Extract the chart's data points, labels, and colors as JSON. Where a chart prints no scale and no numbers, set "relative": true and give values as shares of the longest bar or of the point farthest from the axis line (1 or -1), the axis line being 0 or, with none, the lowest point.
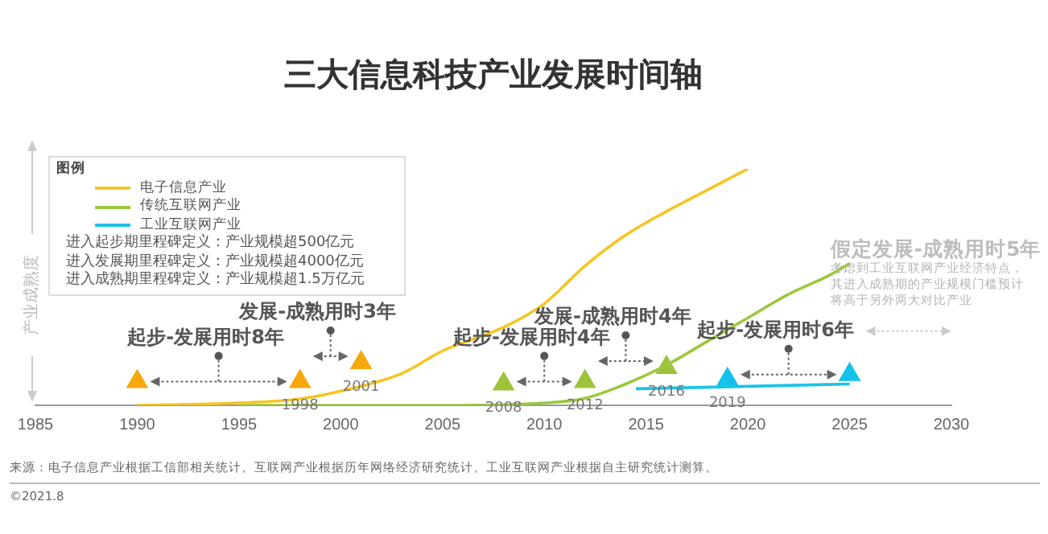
{
  "chart_data": {
    "type": "line",
    "title": "三大信息科技产业发展时间轴",
    "ylabel": "产业成熟度",
    "legend_title": "图例",
    "relative": true,
    "xlim": [
      1985,
      2030
    ],
    "xticks": [
      1985,
      1990,
      1995,
      2000,
      2005,
      2010,
      2015,
      2020,
      2025,
      2030
    ],
    "grid": false,
    "legend": "top left",
    "marker": "none",
    "series": [
      {
        "name": "电子信息产业",
        "color": "#f5c521",
        "x": [
          1990,
          1995,
          1998,
          2000,
          2003,
          2005,
          2008,
          2010,
          2012,
          2014,
          2016,
          2018,
          2020
        ],
        "values": [
          0,
          0.01,
          0.027,
          0.06,
          0.135,
          0.23,
          0.33,
          0.43,
          0.59,
          0.72,
          0.82,
          0.91,
          1
        ]
      },
      {
        "name": "传统互联网产业",
        "color": "#9cc83e",
        "x": [
          1995,
          2005,
          2010,
          2012,
          2014,
          2016,
          2018,
          2020,
          2022,
          2024,
          2025
        ],
        "values": [
          0,
          0,
          0.01,
          0.03,
          0.09,
          0.17,
          0.27,
          0.37,
          0.47,
          0.55,
          0.6
        ]
      },
      {
        "name": "工业互联网产业",
        "color": "#19c3e6",
        "x": [
          2014.5,
          2025
        ],
        "values": [
          0.07,
          0.09
        ]
      },
      {
        "type": "scatter",
        "marker": "triangle",
        "color": "#f6a80c",
        "x": [
          1990,
          1998,
          2001
        ],
        "values": [
          0.1,
          0.1,
          0.18
        ]
      },
      {
        "type": "scatter",
        "marker": "triangle",
        "color": "#9cc33b",
        "x": [
          2008,
          2012,
          2016
        ],
        "values": [
          0.09,
          0.1,
          0.16
        ]
      },
      {
        "type": "scatter",
        "marker": "triangle",
        "color": "#12c2ea",
        "x": [
          2019,
          2025
        ],
        "values": [
          0.11,
          0.13
        ]
      }
    ],
    "annotations": [
      "起步-发展用时8年",
      "发展-成熟用时3年",
      "起步-发展用时4年",
      "发展-成熟用时4年",
      "起步-发展用时6年",
      "假定发展-成熟用时5年",
      "考虑到工业互联网产业经济特点，",
      "其进入成熟期的产业规模门槛预计",
      "将高于另外两大对比产业",
      {
        "text": "1998",
        "x": 1998,
        "y": 0.1
      },
      {
        "text": "2001",
        "x": 2001,
        "y": 0.18
      },
      {
        "text": "2008",
        "x": 2008,
        "y": 0.09
      },
      {
        "text": "2012",
        "x": 2012,
        "y": 0.1
      },
      {
        "text": "2016",
        "x": 2016,
        "y": 0.16
      },
      {
        "text": "2019",
        "x": 2019,
        "y": 0.11
      },
      "进入起步期里程碑定义：产业规模超500亿元",
      "进入发展期里程碑定义：产业规模超4000亿元",
      "进入成熟期里程碑定义：产业规模超1.5万亿元",
      "来源：电子信息产业根据工信部相关统计、互联网产业根据历年网络经济研究统计、工业互联网产业根据自主研究统计测算。",
      "©2021.8"
    ]
  }
}
